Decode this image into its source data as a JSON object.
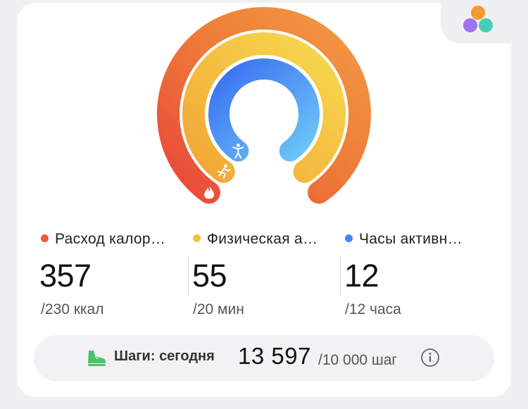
{
  "rings": {
    "calories": {
      "color_start": "#e8463a",
      "color_end": "#f0a040",
      "progress": 1.55
    },
    "activity": {
      "color_start": "#f2a637",
      "color_end": "#f7d74c",
      "progress": 2.75
    },
    "hours": {
      "color_start": "#3f76f2",
      "color_end": "#69c3f7",
      "progress": 1.0
    }
  },
  "ring_icons": {
    "calories": "flame-icon",
    "activity": "running-person-icon",
    "hours": "standing-person-icon"
  },
  "metrics": [
    {
      "label": "Расход калор…",
      "dot_color": "#ee5a3a",
      "value": "357",
      "goal": "/230 ккал"
    },
    {
      "label": "Физическая а…",
      "dot_color": "#f4bf3c",
      "value": "55",
      "goal": "/20 мин"
    },
    {
      "label": "Часы активн…",
      "dot_color": "#4c82f2",
      "value": "12",
      "goal": "/12 часа"
    }
  ],
  "steps": {
    "icon": "sneaker-icon",
    "label": "Шаги: сегодня",
    "value": "13 597",
    "goal": "/10 000 шаг",
    "info_icon": "info-icon"
  },
  "logo": {
    "icon": "app-logo-icon"
  }
}
